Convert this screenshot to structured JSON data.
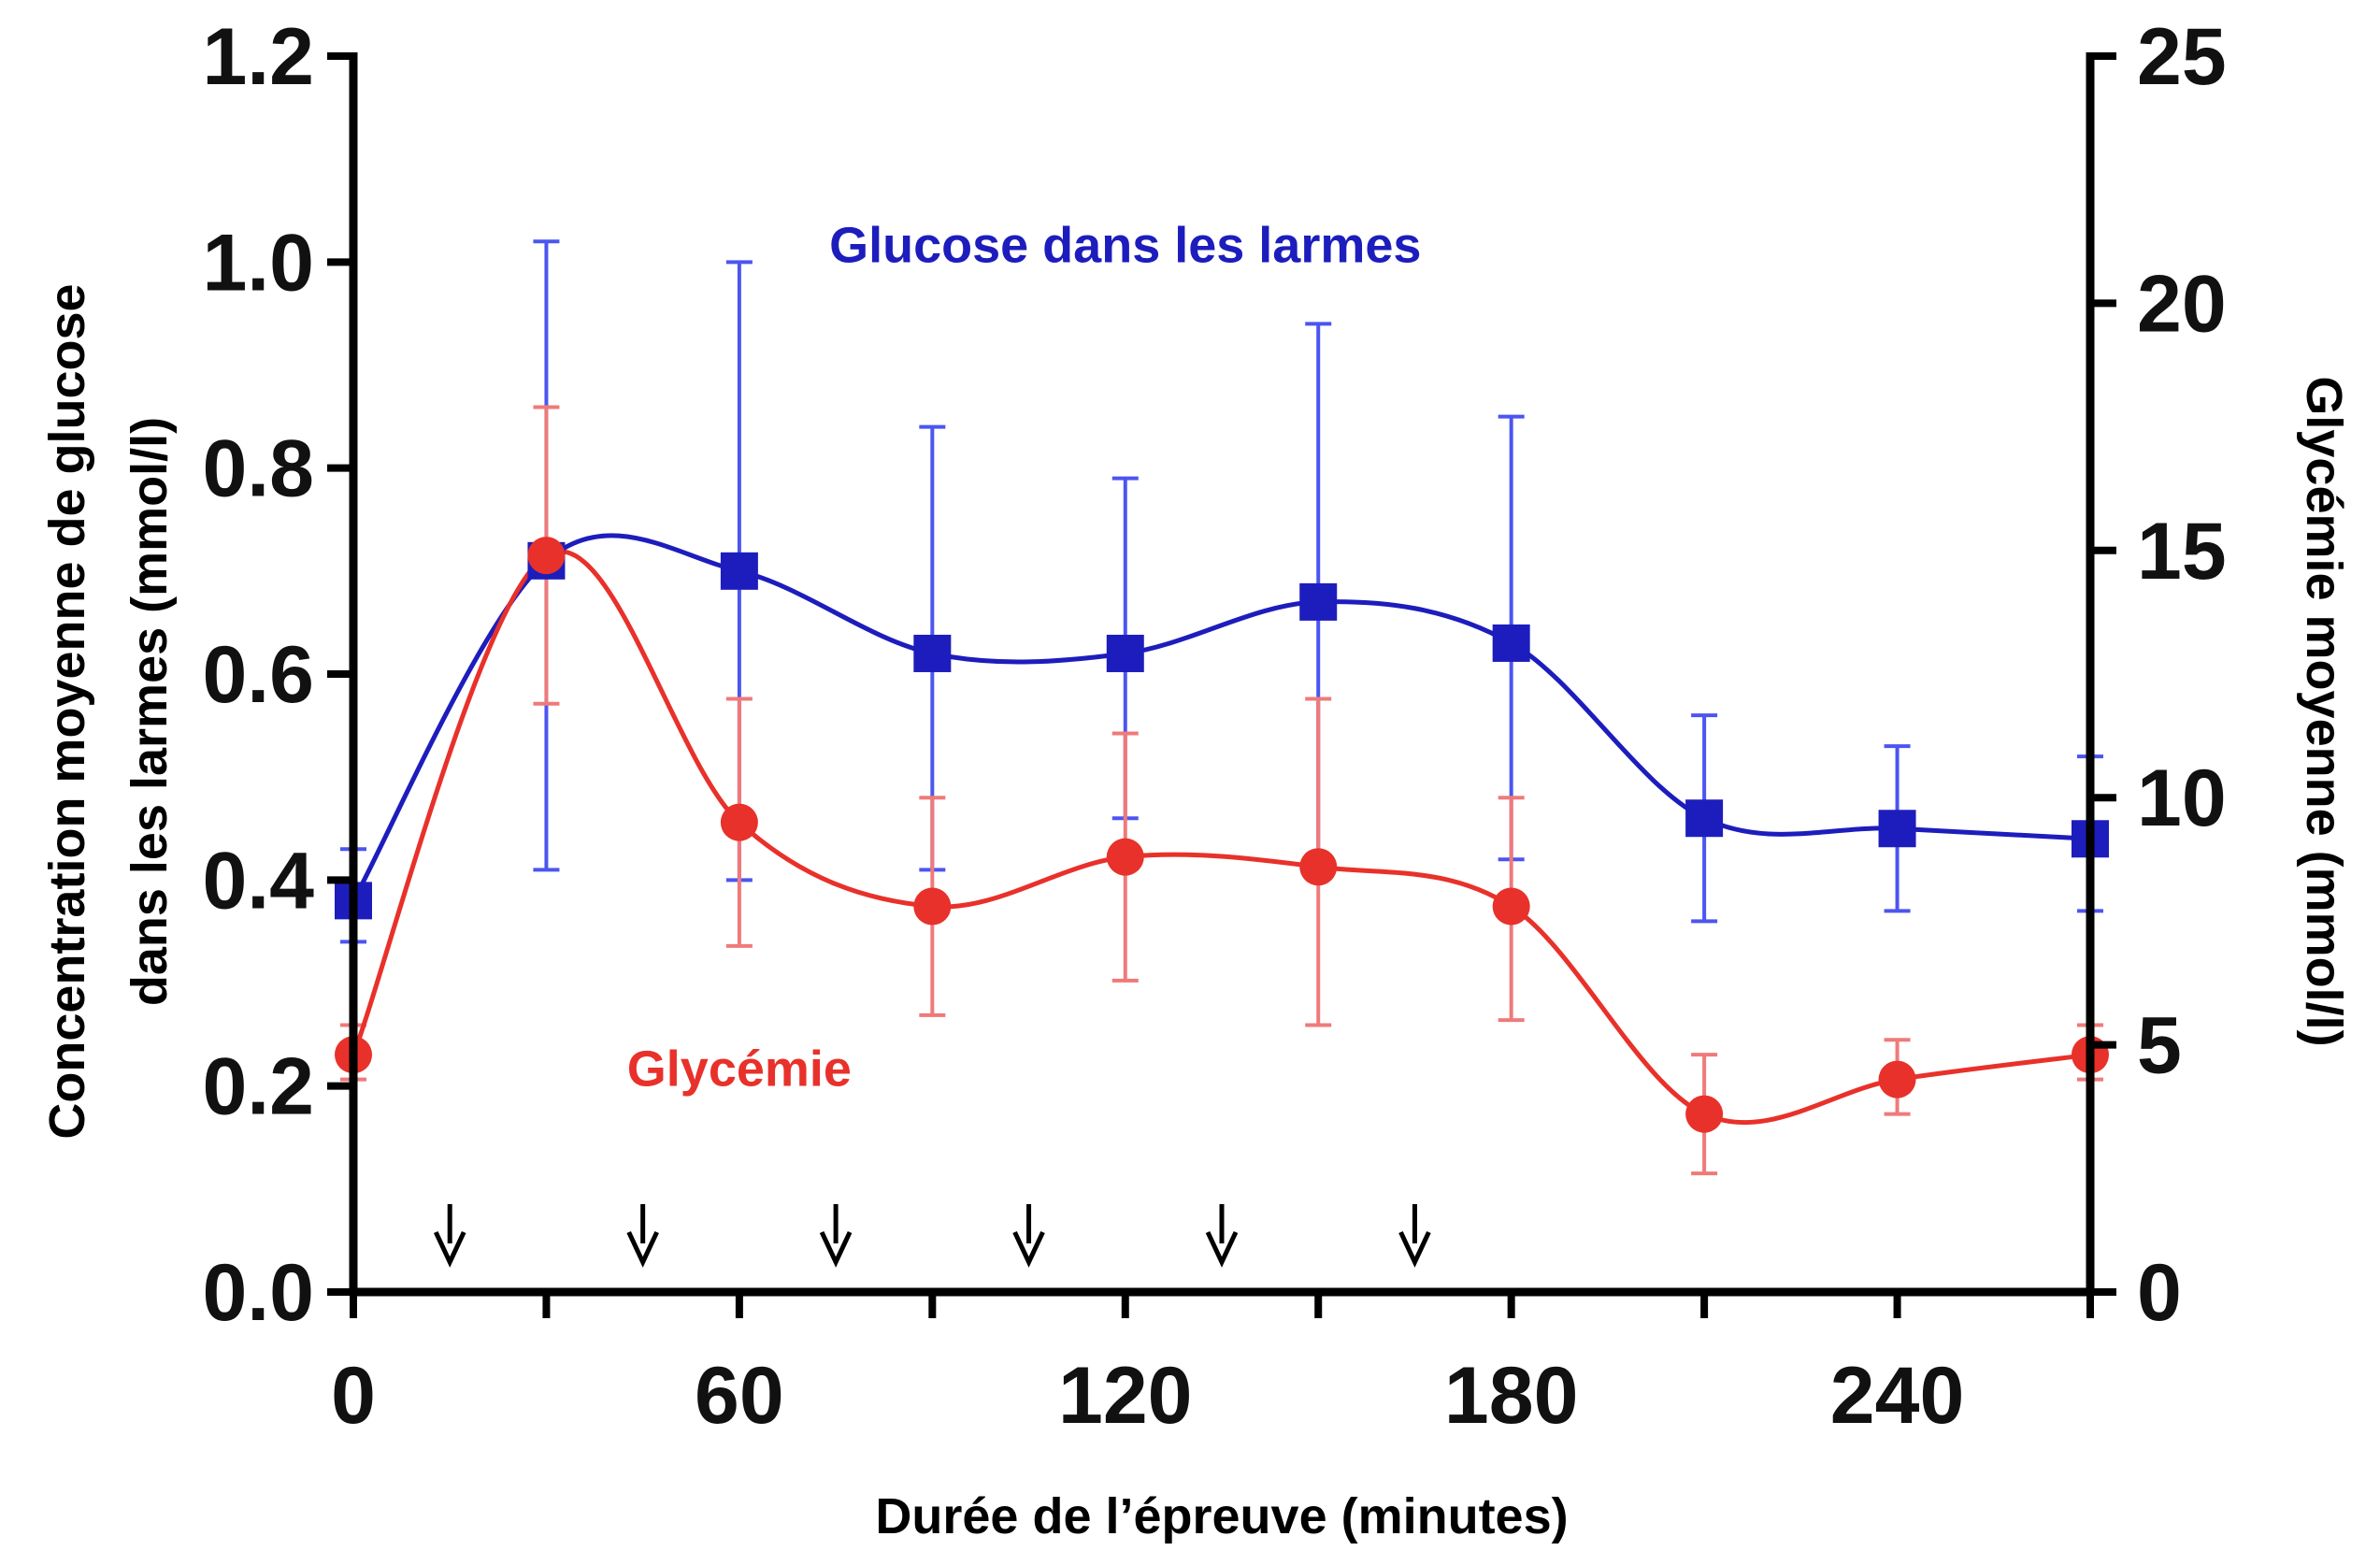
{
  "chart_data": {
    "type": "line",
    "x": [
      0,
      30,
      60,
      90,
      120,
      150,
      180,
      210,
      240,
      270
    ],
    "xlabel": "Durée de l’épreuve (minutes)",
    "xticks": [
      0,
      60,
      120,
      180,
      240
    ],
    "xlim": [
      0,
      270
    ],
    "ylabel_left_line1": "Concentration moyenne de glucose",
    "ylabel_left_line2": "dans les larmes (mmol/l)",
    "yticks_left": [
      "0.0",
      "0.2",
      "0.4",
      "0.6",
      "0.8",
      "1.0",
      "1.2"
    ],
    "ylim_left": [
      0,
      1.2
    ],
    "ylabel_right": "Glycémie moyenne (mmol/l)",
    "yticks_right": [
      "0",
      "5",
      "10",
      "15",
      "20",
      "25"
    ],
    "ylim_right": [
      0,
      25
    ],
    "arrows_x": [
      15,
      45,
      75,
      105,
      135,
      165
    ],
    "series": [
      {
        "name": "Glucose dans les larmes",
        "axis": "left",
        "color": "#1d1dbd",
        "errorbar_color": "#4c55f0",
        "marker": "square",
        "values": [
          0.38,
          0.71,
          0.7,
          0.62,
          0.62,
          0.67,
          0.63,
          0.46,
          0.45,
          0.44
        ],
        "err_low": [
          0.34,
          0.41,
          0.4,
          0.41,
          0.46,
          0.42,
          0.42,
          0.36,
          0.37,
          0.37
        ],
        "err_high": [
          0.43,
          1.02,
          1.0,
          0.84,
          0.79,
          0.94,
          0.85,
          0.56,
          0.53,
          0.52
        ],
        "label_x": 120,
        "label_y": 1.0
      },
      {
        "name": "Glycémie",
        "axis": "right",
        "color": "#e8312a",
        "errorbar_color": "#ef7a7a",
        "marker": "circle",
        "values": [
          4.8,
          14.9,
          9.5,
          7.8,
          8.8,
          8.6,
          7.8,
          3.6,
          4.3,
          4.8
        ],
        "err_low": [
          4.3,
          11.9,
          7.0,
          5.6,
          6.3,
          5.4,
          5.5,
          2.4,
          3.6,
          4.3
        ],
        "err_high": [
          5.4,
          17.9,
          12.0,
          10.0,
          11.3,
          12.0,
          10.0,
          4.8,
          5.1,
          5.4
        ],
        "label_x": 60,
        "label_y": 0.2
      }
    ]
  }
}
